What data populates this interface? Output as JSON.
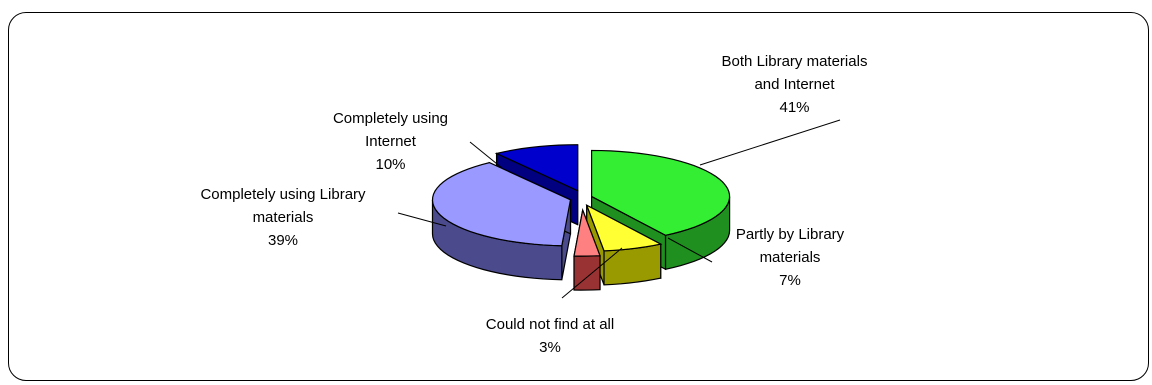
{
  "chart_data": {
    "type": "pie",
    "title": "",
    "style": "3d-exploded",
    "slices": [
      {
        "label_lines": [
          "Both  Library materials",
          "and Internet"
        ],
        "value": 41,
        "value_label": "41%",
        "color": "#33ee33",
        "side_color": "#1f8f1f"
      },
      {
        "label_lines": [
          "Partly by Library",
          "materials"
        ],
        "value": 7,
        "value_label": "7%",
        "color": "#ffff33",
        "side_color": "#999900"
      },
      {
        "label_lines": [
          "Could not find at all"
        ],
        "value": 3,
        "value_label": "3%",
        "color": "#ff8080",
        "side_color": "#993333"
      },
      {
        "label_lines": [
          "Completely using Library",
          "materials"
        ],
        "value": 39,
        "value_label": "39%",
        "color": "#9999ff",
        "side_color": "#4a4a8c"
      },
      {
        "label_lines": [
          "Completely using",
          "Internet"
        ],
        "value": 10,
        "value_label": "10%",
        "color": "#0000cc",
        "side_color": "#000080"
      }
    ],
    "legend": "none"
  }
}
